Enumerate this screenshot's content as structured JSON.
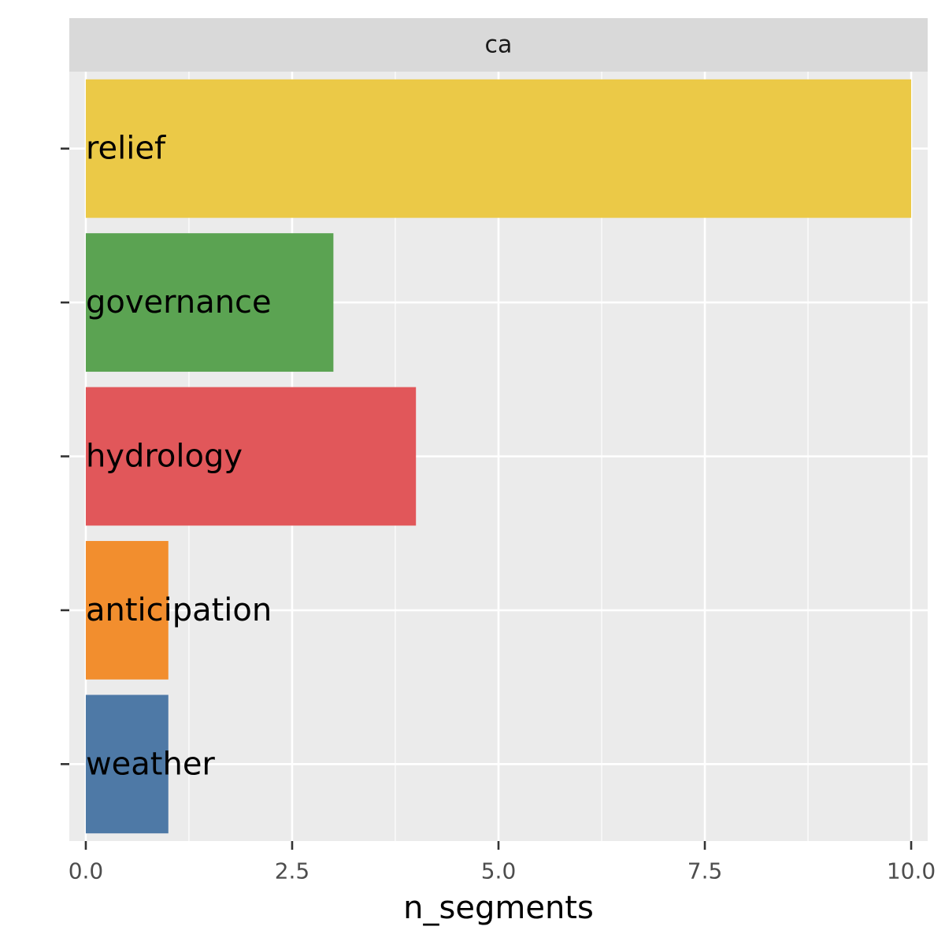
{
  "chart_data": {
    "type": "bar",
    "orientation": "horizontal",
    "facet_label": "ca",
    "xlabel": "n_segments",
    "ylabel": "",
    "xlim": [
      -0.2,
      10.2
    ],
    "x_ticks": [
      "0.0",
      "2.5",
      "5.0",
      "7.5",
      "10.0"
    ],
    "x_tick_values": [
      0,
      2.5,
      5,
      7.5,
      10
    ],
    "categories": [
      "relief",
      "governance",
      "hydrology",
      "anticipation",
      "weather"
    ],
    "values": [
      10,
      3,
      4,
      1,
      1
    ],
    "colors": [
      "#ebc947",
      "#5ba352",
      "#e1575a",
      "#f28e2e",
      "#4e79a6"
    ],
    "grid": true,
    "legend": "none",
    "panel_background": "#ebebeb",
    "strip_background": "#d9d9d9"
  }
}
